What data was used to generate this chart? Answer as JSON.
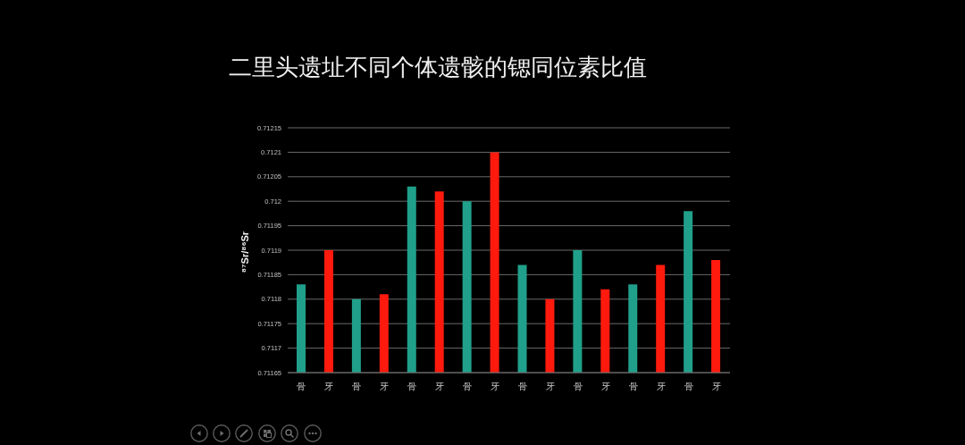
{
  "chart_data": {
    "type": "bar",
    "title": "二里头遗址不同个体遗骸的锶同位素比值",
    "ylabel": "⁸⁷Sr/⁸⁶Sr",
    "categories": [
      "骨",
      "牙",
      "骨",
      "牙",
      "骨",
      "牙",
      "骨",
      "牙",
      "骨",
      "牙",
      "骨",
      "牙",
      "骨",
      "牙",
      "骨",
      "牙"
    ],
    "values": [
      0.71183,
      0.7119,
      0.7118,
      0.71181,
      0.71203,
      0.71202,
      0.712,
      0.7121,
      0.71187,
      0.7118,
      0.7119,
      0.71182,
      0.71183,
      0.71187,
      0.71198,
      0.71188
    ],
    "colors": [
      "#20a08a",
      "#ff1a0d",
      "#20a08a",
      "#ff1a0d",
      "#20a08a",
      "#ff1a0d",
      "#20a08a",
      "#ff1a0d",
      "#20a08a",
      "#ff1a0d",
      "#20a08a",
      "#ff1a0d",
      "#20a08a",
      "#ff1a0d",
      "#20a08a",
      "#ff1a0d"
    ],
    "ylim": [
      0.71165,
      0.71215
    ],
    "yticks": [
      0.71165,
      0.7117,
      0.71175,
      0.7118,
      0.71185,
      0.7119,
      0.71195,
      0.712,
      0.71205,
      0.7121,
      0.71215
    ],
    "grid": "y"
  }
}
